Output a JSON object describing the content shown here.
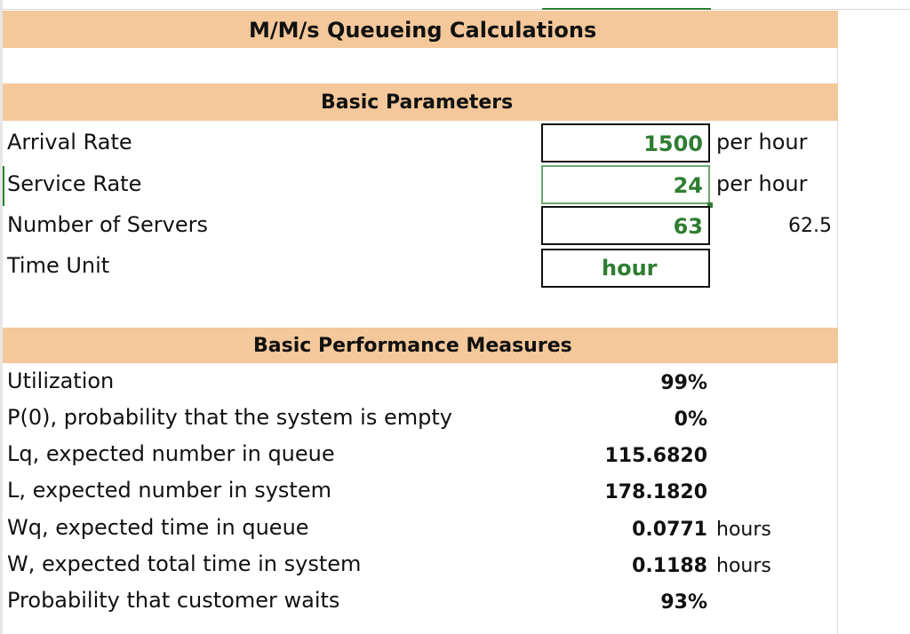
{
  "title": "M/M/s Queueing Calculations",
  "sections": {
    "parameters": "Basic Parameters",
    "measures": "Basic Performance Measures"
  },
  "parameters": [
    {
      "label": "Arrival Rate",
      "value": "1500",
      "unit": "per hour"
    },
    {
      "label": "Service Rate",
      "value": "24",
      "unit": "per hour"
    },
    {
      "label": "Number of Servers",
      "value": "63",
      "aux": "62.5"
    },
    {
      "label": "Time Unit",
      "value": "hour"
    }
  ],
  "measures": [
    {
      "label": "Utilization",
      "value": "99%"
    },
    {
      "label": "P(0), probability that the system is empty",
      "value": "0%"
    },
    {
      "label": "Lq, expected number in queue",
      "value": "115.6820"
    },
    {
      "label": "L, expected number in system",
      "value": "178.1820"
    },
    {
      "label": "Wq, expected time in queue",
      "value": "0.0771",
      "unit": "hours"
    },
    {
      "label": "W, expected total time in system",
      "value": "0.1188",
      "unit": "hours"
    },
    {
      "label": "Probability that customer waits",
      "value": "93%"
    }
  ],
  "colors": {
    "header_band": "#f4c89a",
    "input_value": "#2e7d32",
    "selection": "#2e7d32"
  }
}
